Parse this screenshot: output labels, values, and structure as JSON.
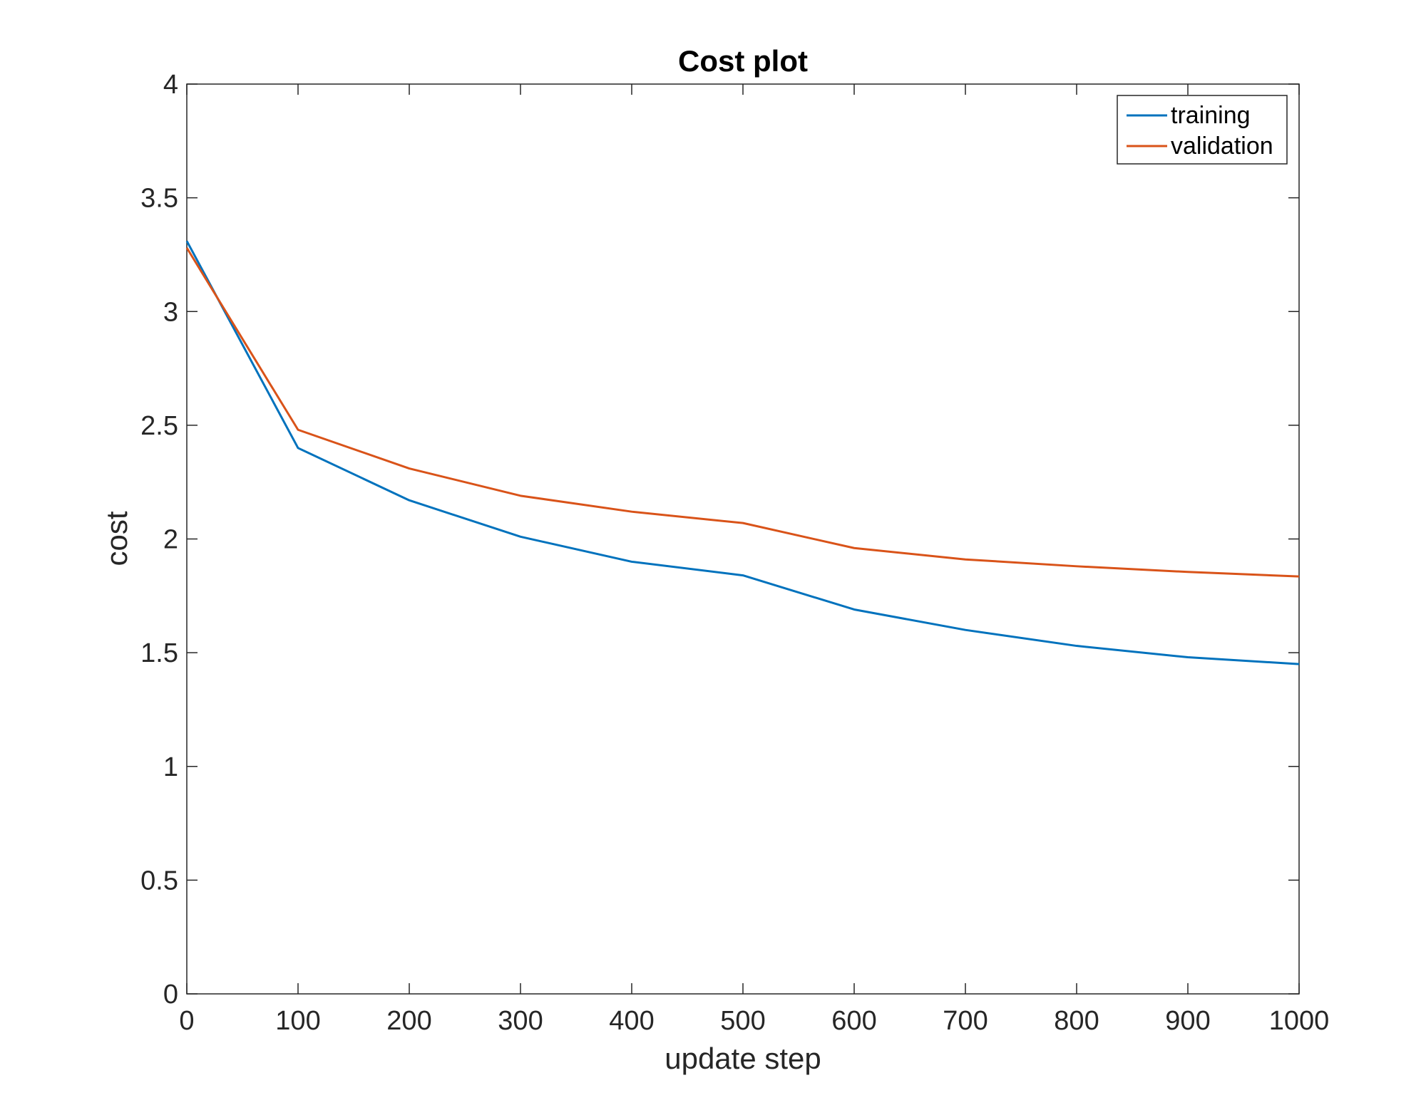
{
  "chart_data": {
    "type": "line",
    "title": "Cost plot",
    "xlabel": "update step",
    "ylabel": "cost",
    "xlim": [
      0,
      1000
    ],
    "ylim": [
      0,
      4
    ],
    "xticks": [
      0,
      100,
      200,
      300,
      400,
      500,
      600,
      700,
      800,
      900,
      1000
    ],
    "yticks": [
      0,
      0.5,
      1,
      1.5,
      2,
      2.5,
      3,
      3.5,
      4
    ],
    "xtick_labels": [
      "0",
      "100",
      "200",
      "300",
      "400",
      "500",
      "600",
      "700",
      "800",
      "900",
      "1000"
    ],
    "ytick_labels": [
      "0",
      "0.5",
      "1",
      "1.5",
      "2",
      "2.5",
      "3",
      "3.5",
      "4"
    ],
    "grid": false,
    "legend_position": "top-right",
    "x": [
      0,
      100,
      200,
      300,
      400,
      500,
      600,
      700,
      800,
      900,
      1000
    ],
    "series": [
      {
        "name": "training",
        "color": "#0072BD",
        "values": [
          3.31,
          2.4,
          2.17,
          2.01,
          1.9,
          1.84,
          1.69,
          1.6,
          1.53,
          1.48,
          1.45
        ]
      },
      {
        "name": "validation",
        "color": "#D95319",
        "values": [
          3.28,
          2.48,
          2.31,
          2.19,
          2.12,
          2.07,
          1.96,
          1.91,
          1.88,
          1.855,
          1.835
        ]
      }
    ]
  }
}
